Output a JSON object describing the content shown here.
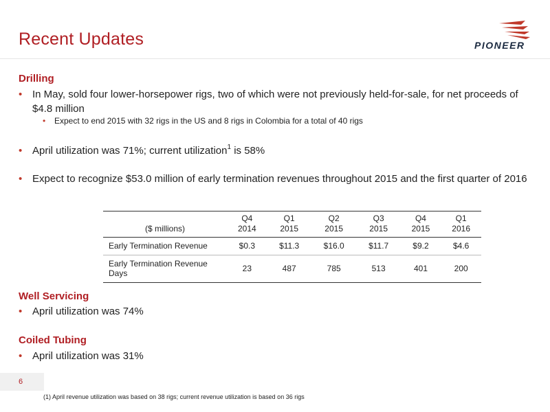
{
  "header": {
    "title": "Recent Updates",
    "logo_text": "PIONEER"
  },
  "drilling": {
    "heading": "Drilling",
    "bullet1": "In May, sold four lower-horsepower rigs, two of which were not previously held-for-sale, for net proceeds of $4.8 million",
    "sub_bullet1": "Expect to end 2015 with 32 rigs in the US and 8 rigs in Colombia for a total of 40 rigs",
    "bullet2_pre": "April utilization was 71%; current utilization",
    "bullet2_sup": "1",
    "bullet2_post": " is 58%",
    "bullet3": "Expect to recognize $53.0 million of early termination revenues throughout 2015 and the first quarter of 2016"
  },
  "table": {
    "unit_label": "($ millions)",
    "columns": [
      {
        "q": "Q4",
        "y": "2014"
      },
      {
        "q": "Q1",
        "y": "2015"
      },
      {
        "q": "Q2",
        "y": "2015"
      },
      {
        "q": "Q3",
        "y": "2015"
      },
      {
        "q": "Q4",
        "y": "2015"
      },
      {
        "q": "Q1",
        "y": "2016"
      }
    ],
    "rows": [
      {
        "label": "Early Termination Revenue",
        "values": [
          "$0.3",
          "$11.3",
          "$16.0",
          "$11.7",
          "$9.2",
          "$4.6"
        ]
      },
      {
        "label": "Early Termination Revenue Days",
        "values": [
          "23",
          "487",
          "785",
          "513",
          "401",
          "200"
        ]
      }
    ]
  },
  "well_servicing": {
    "heading": "Well Servicing",
    "bullet": "April utilization was 74%"
  },
  "coiled_tubing": {
    "heading": "Coiled Tubing",
    "bullet": "April utilization was 31%"
  },
  "footer": {
    "page_number": "6",
    "footnote": "(1)  April revenue utilization was based on 38 rigs; current revenue utilization is based on 36 rigs"
  },
  "colors": {
    "accent": "#b01e23",
    "logo_dark": "#1b2a40"
  }
}
